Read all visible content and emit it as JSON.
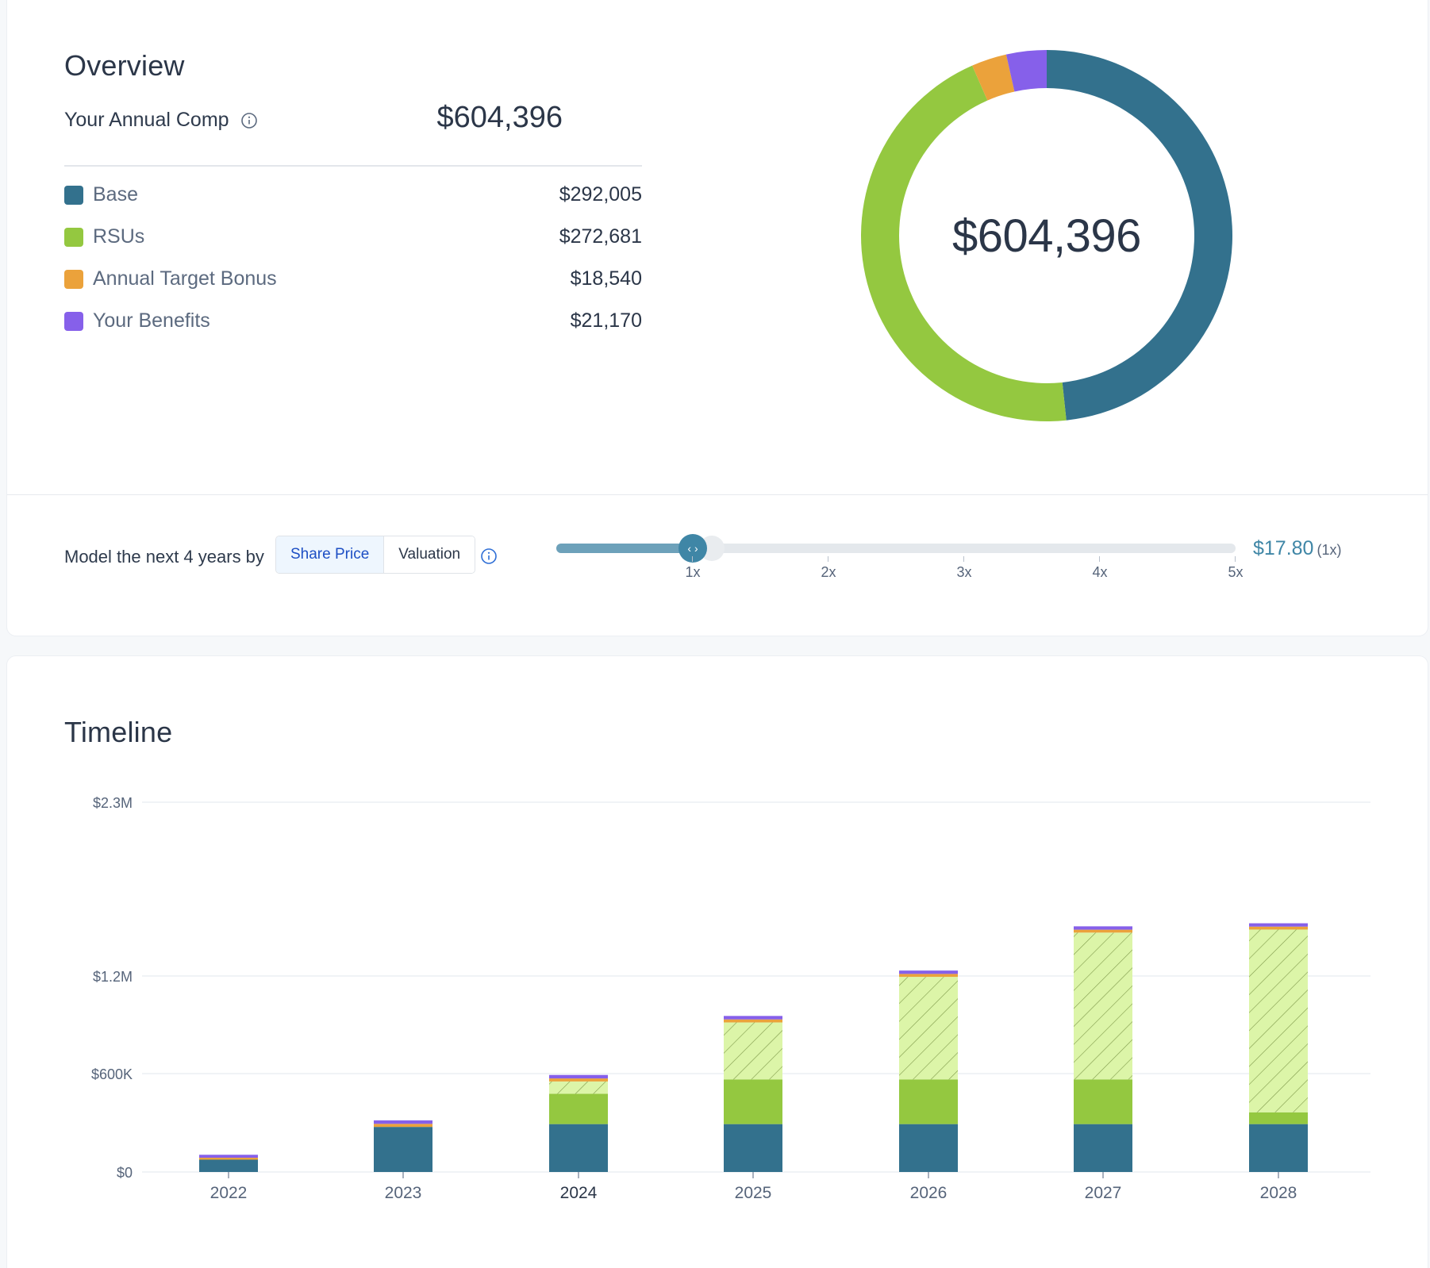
{
  "overview": {
    "title": "Overview",
    "annual_comp_label": "Your Annual Comp",
    "annual_comp_total": "$604,396",
    "items": [
      {
        "label": "Base",
        "value": "$292,005",
        "color": "#33718d"
      },
      {
        "label": "RSUs",
        "value": "$272,681",
        "color": "#94c840"
      },
      {
        "label": "Annual Target Bonus",
        "value": "$18,540",
        "color": "#eba23b"
      },
      {
        "label": "Your Benefits",
        "value": "$21,170",
        "color": "#8660ea"
      }
    ],
    "donut_center": "$604,396",
    "donut_values": [
      292005,
      272681,
      18540,
      21170
    ]
  },
  "model": {
    "label": "Model the next 4 years by",
    "options": [
      "Share Price",
      "Valuation"
    ],
    "selected": "Share Price",
    "slider_ticks": [
      "1x",
      "2x",
      "3x",
      "4x",
      "5x"
    ],
    "slider_value": 1,
    "price": "$17.80",
    "multiplier": "(1x)"
  },
  "timeline": {
    "title": "Timeline"
  },
  "chart_data": {
    "type": "bar",
    "stacked": true,
    "categories": [
      "2022",
      "2023",
      "2024",
      "2025",
      "2026",
      "2027",
      "2028"
    ],
    "y_ticks": [
      {
        "label": "$0",
        "value": 0
      },
      {
        "label": "$600K",
        "value": 600000
      },
      {
        "label": "$1.2M",
        "value": 1200000
      },
      {
        "label": "$2.3M",
        "value": 2300000
      }
    ],
    "ylim": [
      0,
      2300000
    ],
    "series": [
      {
        "name": "Base",
        "color": "#33718d",
        "values": [
          75000,
          275000,
          292005,
          292005,
          292005,
          292005,
          292005
        ]
      },
      {
        "name": "RSUs",
        "color": "#94c840",
        "values": [
          0,
          0,
          185000,
          272681,
          272681,
          272681,
          72000
        ]
      },
      {
        "name": "RSUs (projected)",
        "color": "#dcf5a8",
        "hatched": true,
        "values": [
          0,
          0,
          75000,
          350000,
          630000,
          910000,
          1130000
        ]
      },
      {
        "name": "Annual Target Bonus",
        "color": "#eba23b",
        "values": [
          12000,
          18540,
          18540,
          18540,
          18540,
          18540,
          18540
        ]
      },
      {
        "name": "Your Benefits",
        "color": "#8660ea",
        "values": [
          18000,
          21170,
          21170,
          21170,
          21170,
          21170,
          21170
        ]
      }
    ]
  }
}
